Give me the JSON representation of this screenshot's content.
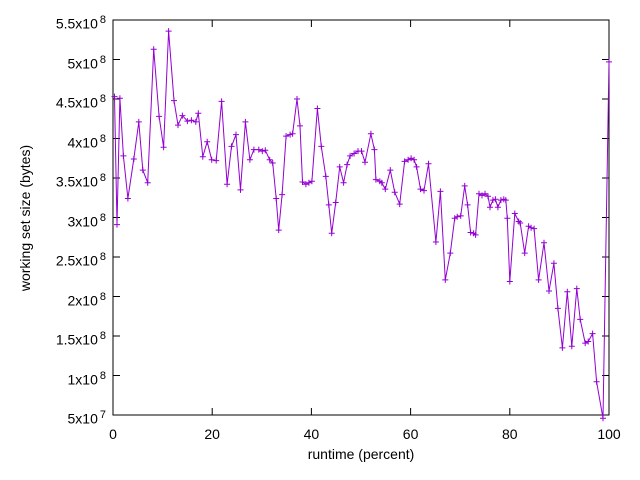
{
  "chart_data": {
    "type": "line",
    "title": "",
    "xlabel": "runtime (percent)",
    "ylabel": "working set size (bytes)",
    "xlim": [
      0,
      100
    ],
    "ylim": [
      50000000.0,
      550000000.0
    ],
    "grid": false,
    "legend": "none",
    "line_color": "#9400D3",
    "frame_color": "#000000",
    "background_color": "#ffffff",
    "marker": "plus",
    "x_ticks": [
      {
        "value": 0,
        "label": "0"
      },
      {
        "value": 20,
        "label": "20"
      },
      {
        "value": 40,
        "label": "40"
      },
      {
        "value": 60,
        "label": "60"
      },
      {
        "value": 80,
        "label": "80"
      },
      {
        "value": 100,
        "label": "100"
      }
    ],
    "y_ticks": [
      {
        "value": 50000000.0,
        "mantissa": "5x10",
        "exponent": "7"
      },
      {
        "value": 100000000.0,
        "mantissa": "1x10",
        "exponent": "8"
      },
      {
        "value": 150000000.0,
        "mantissa": "1.5x10",
        "exponent": "8"
      },
      {
        "value": 200000000.0,
        "mantissa": "2x10",
        "exponent": "8"
      },
      {
        "value": 250000000.0,
        "mantissa": "2.5x10",
        "exponent": "8"
      },
      {
        "value": 300000000.0,
        "mantissa": "3x10",
        "exponent": "8"
      },
      {
        "value": 350000000.0,
        "mantissa": "3.5x10",
        "exponent": "8"
      },
      {
        "value": 400000000.0,
        "mantissa": "4x10",
        "exponent": "8"
      },
      {
        "value": 450000000.0,
        "mantissa": "4.5x10",
        "exponent": "8"
      },
      {
        "value": 500000000.0,
        "mantissa": "5x10",
        "exponent": "8"
      },
      {
        "value": 550000000.0,
        "mantissa": "5.5x10",
        "exponent": "8"
      }
    ],
    "series": [
      {
        "name": "working set size",
        "points": [
          [
            0.3,
            453000000.0
          ],
          [
            0.8,
            291000000.0
          ],
          [
            1.4,
            451000000.0
          ],
          [
            2.1,
            378000000.0
          ],
          [
            3.0,
            324000000.0
          ],
          [
            4.2,
            374000000.0
          ],
          [
            5.2,
            421000000.0
          ],
          [
            6.0,
            360000000.0
          ],
          [
            7.0,
            344000000.0
          ],
          [
            8.2,
            513000000.0
          ],
          [
            9.3,
            428000000.0
          ],
          [
            10.2,
            389000000.0
          ],
          [
            11.2,
            536000000.0
          ],
          [
            12.3,
            448000000.0
          ],
          [
            13.1,
            417000000.0
          ],
          [
            14.0,
            429000000.0
          ],
          [
            15.0,
            422000000.0
          ],
          [
            15.8,
            423000000.0
          ],
          [
            16.7,
            421000000.0
          ],
          [
            17.2,
            432000000.0
          ],
          [
            18.1,
            377000000.0
          ],
          [
            19.0,
            396000000.0
          ],
          [
            19.9,
            373000000.0
          ],
          [
            20.8,
            372000000.0
          ],
          [
            21.9,
            447000000.0
          ],
          [
            23.0,
            342000000.0
          ],
          [
            23.9,
            390000000.0
          ],
          [
            24.8,
            405000000.0
          ],
          [
            25.7,
            335000000.0
          ],
          [
            26.7,
            421000000.0
          ],
          [
            27.6,
            373000000.0
          ],
          [
            28.4,
            386000000.0
          ],
          [
            29.4,
            386000000.0
          ],
          [
            30.1,
            384000000.0
          ],
          [
            30.7,
            385000000.0
          ],
          [
            31.6,
            373000000.0
          ],
          [
            32.2,
            369000000.0
          ],
          [
            32.9,
            324000000.0
          ],
          [
            33.4,
            284000000.0
          ],
          [
            34.1,
            329000000.0
          ],
          [
            34.9,
            403000000.0
          ],
          [
            35.7,
            405000000.0
          ],
          [
            36.2,
            406000000.0
          ],
          [
            37.1,
            450000000.0
          ],
          [
            37.7,
            416000000.0
          ],
          [
            38.2,
            345000000.0
          ],
          [
            38.9,
            342000000.0
          ],
          [
            39.5,
            344000000.0
          ],
          [
            40.1,
            346000000.0
          ],
          [
            41.2,
            438000000.0
          ],
          [
            42.0,
            390000000.0
          ],
          [
            42.9,
            352000000.0
          ],
          [
            43.5,
            316000000.0
          ],
          [
            44.1,
            280000000.0
          ],
          [
            44.9,
            319000000.0
          ],
          [
            45.7,
            364000000.0
          ],
          [
            46.5,
            344000000.0
          ],
          [
            47.2,
            367000000.0
          ],
          [
            47.8,
            378000000.0
          ],
          [
            48.6,
            381000000.0
          ],
          [
            49.4,
            384000000.0
          ],
          [
            50.1,
            384000000.0
          ],
          [
            50.8,
            370000000.0
          ],
          [
            52.0,
            406000000.0
          ],
          [
            52.7,
            386000000.0
          ],
          [
            53.0,
            348000000.0
          ],
          [
            53.8,
            346000000.0
          ],
          [
            54.2,
            344000000.0
          ],
          [
            54.9,
            336000000.0
          ],
          [
            55.9,
            360000000.0
          ],
          [
            56.8,
            332000000.0
          ],
          [
            57.8,
            317000000.0
          ],
          [
            58.8,
            371000000.0
          ],
          [
            59.5,
            373000000.0
          ],
          [
            60.1,
            375000000.0
          ],
          [
            60.7,
            373000000.0
          ],
          [
            61.2,
            364000000.0
          ],
          [
            62.0,
            336000000.0
          ],
          [
            62.7,
            334000000.0
          ],
          [
            63.6,
            368000000.0
          ],
          [
            65.1,
            269000000.0
          ],
          [
            66.0,
            333000000.0
          ],
          [
            67.0,
            221000000.0
          ],
          [
            68.0,
            255000000.0
          ],
          [
            68.9,
            299000000.0
          ],
          [
            69.4,
            301000000.0
          ],
          [
            70.1,
            302000000.0
          ],
          [
            70.9,
            340000000.0
          ],
          [
            71.5,
            316000000.0
          ],
          [
            72.1,
            281000000.0
          ],
          [
            72.7,
            280000000.0
          ],
          [
            73.1,
            278000000.0
          ],
          [
            73.8,
            330000000.0
          ],
          [
            74.4,
            328000000.0
          ],
          [
            75.0,
            330000000.0
          ],
          [
            75.6,
            327000000.0
          ],
          [
            76.0,
            313000000.0
          ],
          [
            76.6,
            322000000.0
          ],
          [
            77.1,
            323000000.0
          ],
          [
            77.6,
            313000000.0
          ],
          [
            78.2,
            322000000.0
          ],
          [
            78.8,
            323000000.0
          ],
          [
            79.2,
            322000000.0
          ],
          [
            79.5,
            299000000.0
          ],
          [
            80.0,
            219000000.0
          ],
          [
            81.0,
            305000000.0
          ],
          [
            81.8,
            295000000.0
          ],
          [
            82.1,
            293000000.0
          ],
          [
            83.0,
            255000000.0
          ],
          [
            83.8,
            289000000.0
          ],
          [
            84.3,
            287000000.0
          ],
          [
            84.9,
            286000000.0
          ],
          [
            85.8,
            221000000.0
          ],
          [
            86.9,
            268000000.0
          ],
          [
            87.9,
            207000000.0
          ],
          [
            88.9,
            242000000.0
          ],
          [
            89.7,
            185000000.0
          ],
          [
            90.6,
            135000000.0
          ],
          [
            91.6,
            206000000.0
          ],
          [
            92.5,
            137000000.0
          ],
          [
            93.5,
            210000000.0
          ],
          [
            94.2,
            171000000.0
          ],
          [
            95.2,
            141000000.0
          ],
          [
            95.8,
            143000000.0
          ],
          [
            96.7,
            153000000.0
          ],
          [
            97.5,
            92000000.0
          ],
          [
            98.8,
            46000000.0
          ],
          [
            100.0,
            497000000.0
          ]
        ]
      }
    ]
  }
}
